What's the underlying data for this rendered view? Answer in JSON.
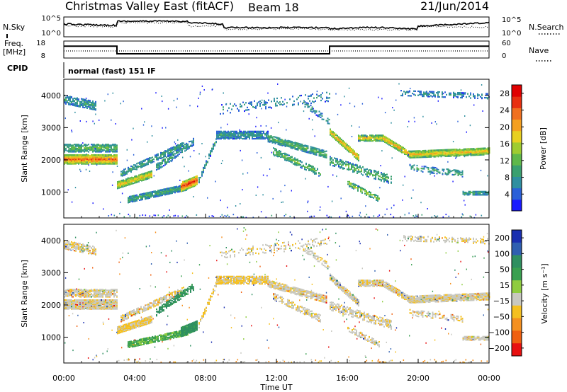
{
  "header": {
    "station": "Christmas Valley East (fitACF)",
    "beam": "Beam 18",
    "date": "21/Jun/2014"
  },
  "panels": {
    "nsky_label": "N.Sky",
    "nsearch_label": "N.Search",
    "freq_label_line1": "Freq.",
    "freq_label_line2": "[MHz]",
    "nave_label": "Nave",
    "cpid_label": "CPID",
    "cpid_value": "normal (fast) 151 IF",
    "noise_ticks_left": [
      "10^5",
      "10^0"
    ],
    "noise_ticks_right": [
      "10^5",
      "10^0"
    ],
    "freq_ticks_left": [
      "18",
      "8"
    ],
    "nave_ticks_right": [
      "60",
      "0"
    ]
  },
  "chart_data": [
    {
      "type": "line",
      "name": "noise",
      "series": [
        {
          "name": "N.Sky",
          "style": "solid"
        },
        {
          "name": "N.Search",
          "style": "dotted"
        }
      ]
    },
    {
      "type": "line",
      "name": "frequency-nave",
      "series": [
        {
          "name": "Freq.",
          "style": "solid",
          "x_hours": [
            0,
            3.0,
            3.0,
            15.0,
            15.0,
            24
          ],
          "y_mhz": [
            15,
            15,
            10.5,
            10.5,
            15,
            15
          ]
        },
        {
          "name": "Nave",
          "style": "dotted",
          "x_hours": [
            0,
            24
          ],
          "y": [
            25,
            25
          ]
        }
      ]
    },
    {
      "type": "heatmap",
      "name": "power",
      "ylabel": "Slant Range [km]",
      "xlabel": "Time UT",
      "xlim_hours": [
        0,
        24
      ],
      "ylim_km": [
        200,
        4500
      ],
      "y_ticks": [
        "1000",
        "2000",
        "3000",
        "4000"
      ],
      "x_ticks": [
        "00:00",
        "04:00",
        "08:00",
        "12:00",
        "16:00",
        "20:00",
        "00:00"
      ],
      "colorbar": {
        "label": "Power [dB]",
        "ticks": [
          "4",
          "8",
          "12",
          "16",
          "20",
          "24",
          "28"
        ],
        "colors": [
          "#1a1aff",
          "#2a60d8",
          "#2f8fa0",
          "#3aa070",
          "#5fb84a",
          "#9fcc30",
          "#e8d020",
          "#f5a020",
          "#f07020",
          "#e83010",
          "#e00000"
        ]
      }
    },
    {
      "type": "heatmap",
      "name": "velocity",
      "ylabel": "Slant Range [km]",
      "xlabel": "Time UT",
      "xlim_hours": [
        0,
        24
      ],
      "ylim_km": [
        200,
        4500
      ],
      "y_ticks": [
        "1000",
        "2000",
        "3000",
        "4000"
      ],
      "x_ticks": [
        "00:00",
        "04:00",
        "08:00",
        "12:00",
        "16:00",
        "20:00",
        "00:00"
      ],
      "colorbar": {
        "label": "Velocity [m s⁻¹]",
        "ticks": [
          "200",
          "100",
          "50",
          "15",
          "−15",
          "−50",
          "−100",
          "−200"
        ],
        "colors": [
          "#1a2fb0",
          "#2f5fb0",
          "#2f8f60",
          "#3aa050",
          "#8fcc40",
          "#c8c8c0",
          "#f5c020",
          "#f59020",
          "#f06010",
          "#e81010"
        ]
      }
    }
  ]
}
